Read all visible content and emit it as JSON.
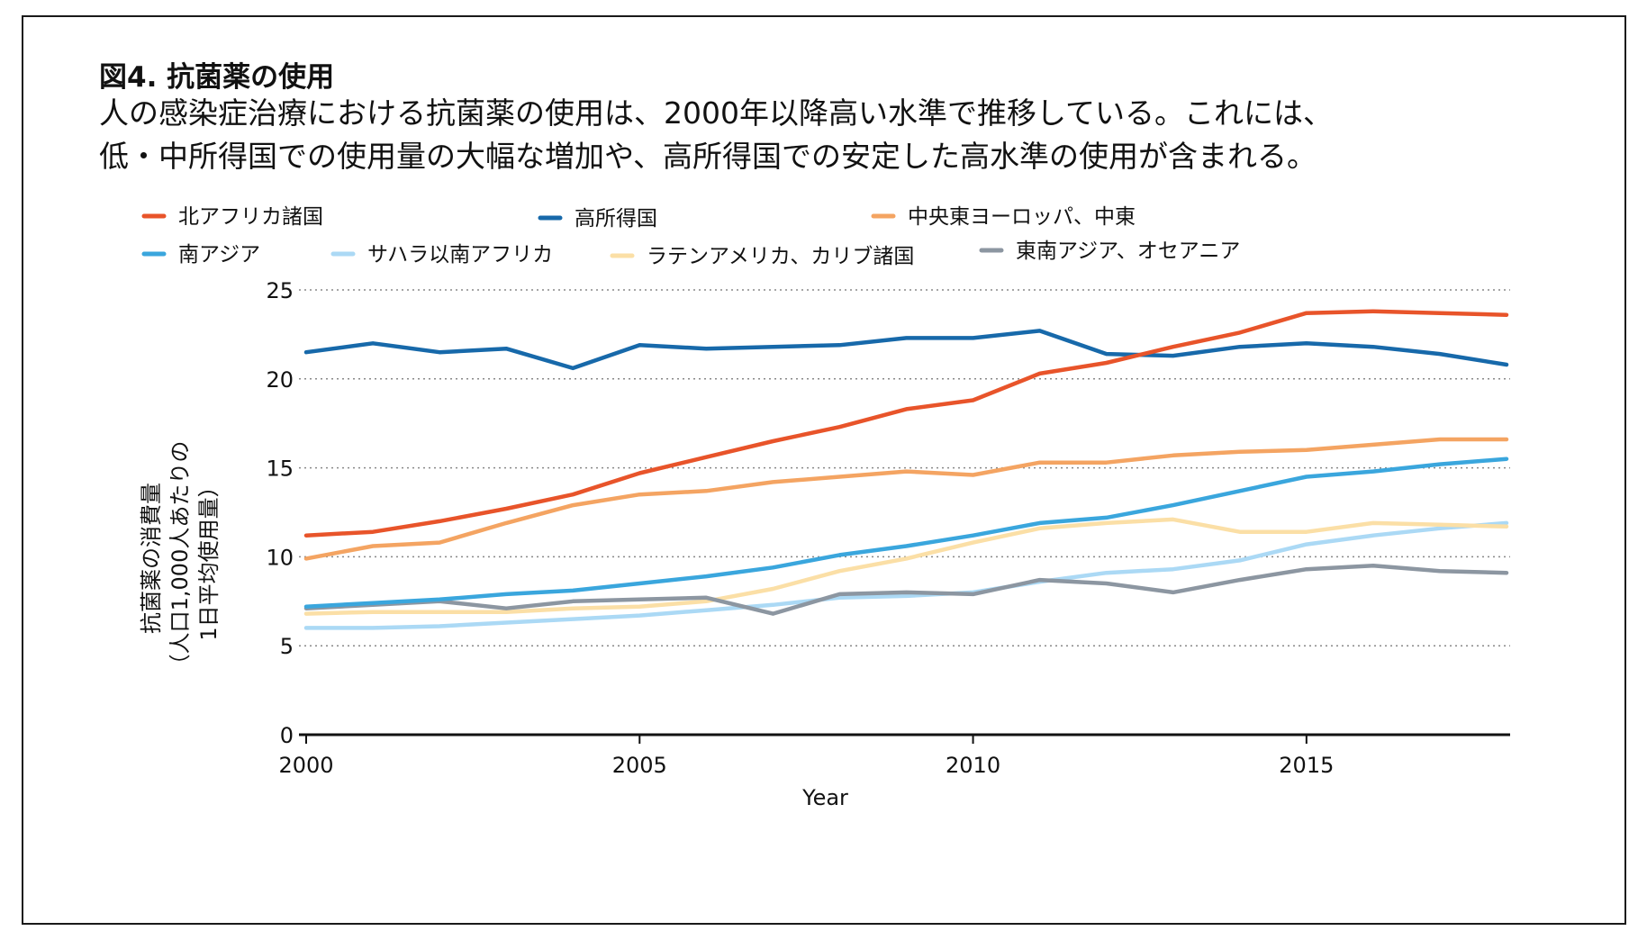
{
  "figure": {
    "title": "図4. 抗菌薬の使用",
    "subtitle_lines": [
      "人の感染症治療における抗菌薬の使用は、2000年以降高い水準で推移している。これには、",
      "低・中所得国での使用量の大幅な増加や、高所得国での安定した高水準の使用が含まれる。"
    ]
  },
  "chart_data": {
    "type": "line",
    "title": "図4. 抗菌薬の使用",
    "xlabel": "Year",
    "ylabel_lines": [
      "抗菌薬の消費量",
      "（人口1,000人あたりの",
      "1日平均使用量）"
    ],
    "xlim": [
      2000,
      2018
    ],
    "ylim": [
      0,
      25
    ],
    "xticks": [
      2000,
      2005,
      2010,
      2015
    ],
    "yticks": [
      0,
      5,
      10,
      15,
      20,
      25
    ],
    "grid": "horizontal-dotted",
    "legend_position": "top",
    "x": [
      2000,
      2001,
      2002,
      2003,
      2004,
      2005,
      2006,
      2007,
      2008,
      2009,
      2010,
      2011,
      2012,
      2013,
      2014,
      2015,
      2016,
      2017,
      2018
    ],
    "series": [
      {
        "name": "北アフリカ諸国",
        "color": "#e8542a",
        "values": [
          11.2,
          11.4,
          12.0,
          12.7,
          13.5,
          14.7,
          15.6,
          16.5,
          17.3,
          18.3,
          18.8,
          20.3,
          20.9,
          21.8,
          22.6,
          23.7,
          23.8,
          23.7,
          23.6
        ]
      },
      {
        "name": "高所得国",
        "color": "#1769aa",
        "values": [
          21.5,
          22.0,
          21.5,
          21.7,
          20.6,
          21.9,
          21.7,
          21.8,
          21.9,
          22.3,
          22.3,
          22.7,
          21.4,
          21.3,
          21.8,
          22.0,
          21.8,
          21.4,
          20.8
        ]
      },
      {
        "name": "中央東ヨーロッパ、中東",
        "color": "#f4a462",
        "values": [
          9.9,
          10.6,
          10.8,
          11.9,
          12.9,
          13.5,
          13.7,
          14.2,
          14.5,
          14.8,
          14.6,
          15.3,
          15.3,
          15.7,
          15.9,
          16.0,
          16.3,
          16.6,
          16.6
        ]
      },
      {
        "name": "南アジア",
        "color": "#3aa6dd",
        "values": [
          7.2,
          7.4,
          7.6,
          7.9,
          8.1,
          8.5,
          8.9,
          9.4,
          10.1,
          10.6,
          11.2,
          11.9,
          12.2,
          12.9,
          13.7,
          14.5,
          14.8,
          15.2,
          15.5
        ]
      },
      {
        "name": "サハラ以南アフリカ",
        "color": "#abd9f5",
        "values": [
          6.0,
          6.0,
          6.1,
          6.3,
          6.5,
          6.7,
          7.0,
          7.3,
          7.7,
          7.8,
          8.0,
          8.6,
          9.1,
          9.3,
          9.8,
          10.7,
          11.2,
          11.6,
          11.9
        ]
      },
      {
        "name": "ラテンアメリカ、カリブ諸国",
        "color": "#fbdfa6",
        "values": [
          6.8,
          6.9,
          6.9,
          6.9,
          7.1,
          7.2,
          7.5,
          8.2,
          9.2,
          9.9,
          10.8,
          11.6,
          11.9,
          12.1,
          11.4,
          11.4,
          11.9,
          11.8,
          11.7
        ]
      },
      {
        "name": "東南アジア、オセアニア",
        "color": "#8c96a1",
        "values": [
          7.1,
          7.3,
          7.5,
          7.1,
          7.5,
          7.6,
          7.7,
          6.8,
          7.9,
          8.0,
          7.9,
          8.7,
          8.5,
          8.0,
          8.7,
          9.3,
          9.5,
          9.2,
          9.1
        ]
      }
    ]
  }
}
